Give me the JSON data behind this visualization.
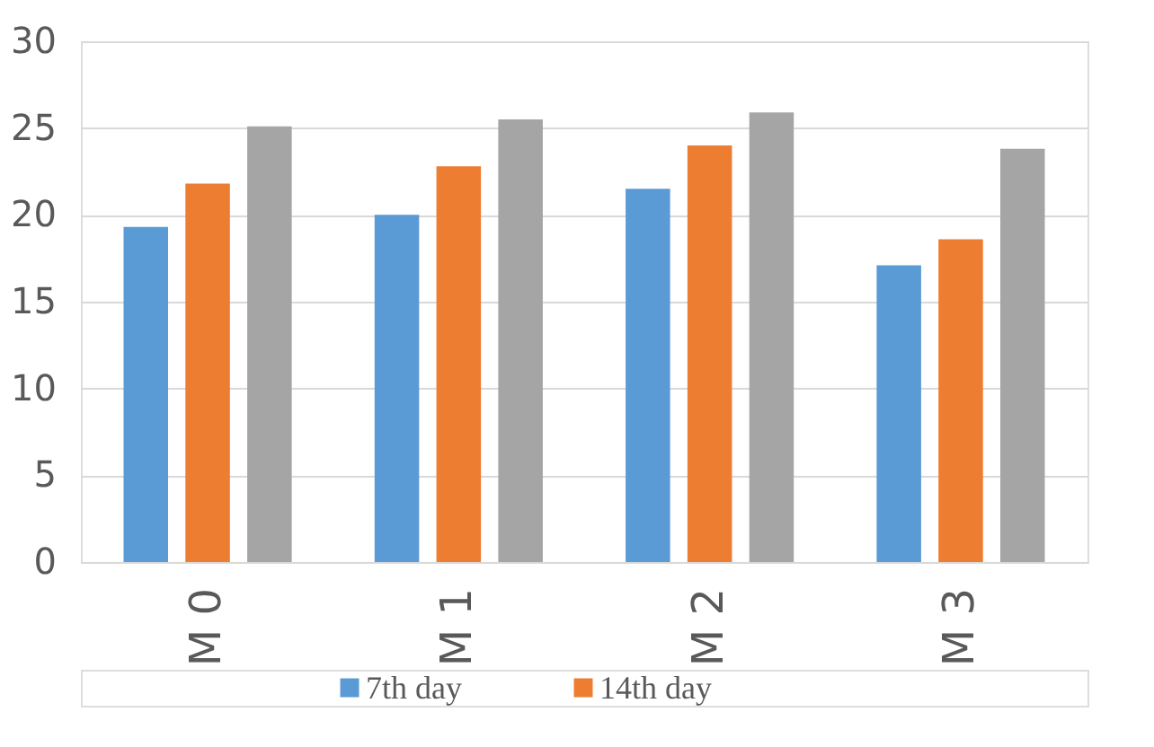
{
  "chart_data": {
    "type": "bar",
    "categories": [
      "M 0",
      "M 1",
      "M 2",
      "M 3"
    ],
    "series": [
      {
        "name": "7th day",
        "color": "#5b9bd5",
        "values": [
          19.3,
          20.0,
          21.5,
          17.1
        ]
      },
      {
        "name": "14th day",
        "color": "#ed7d31",
        "values": [
          21.8,
          22.8,
          24.0,
          18.6
        ]
      },
      {
        "color": "#a5a5a5",
        "values": [
          25.1,
          25.5,
          25.9,
          23.8
        ]
      }
    ],
    "ylim": [
      0,
      30
    ],
    "yticks": [
      0,
      5,
      10,
      15,
      20,
      25,
      30
    ],
    "grid": "y",
    "legend": "bottom"
  }
}
